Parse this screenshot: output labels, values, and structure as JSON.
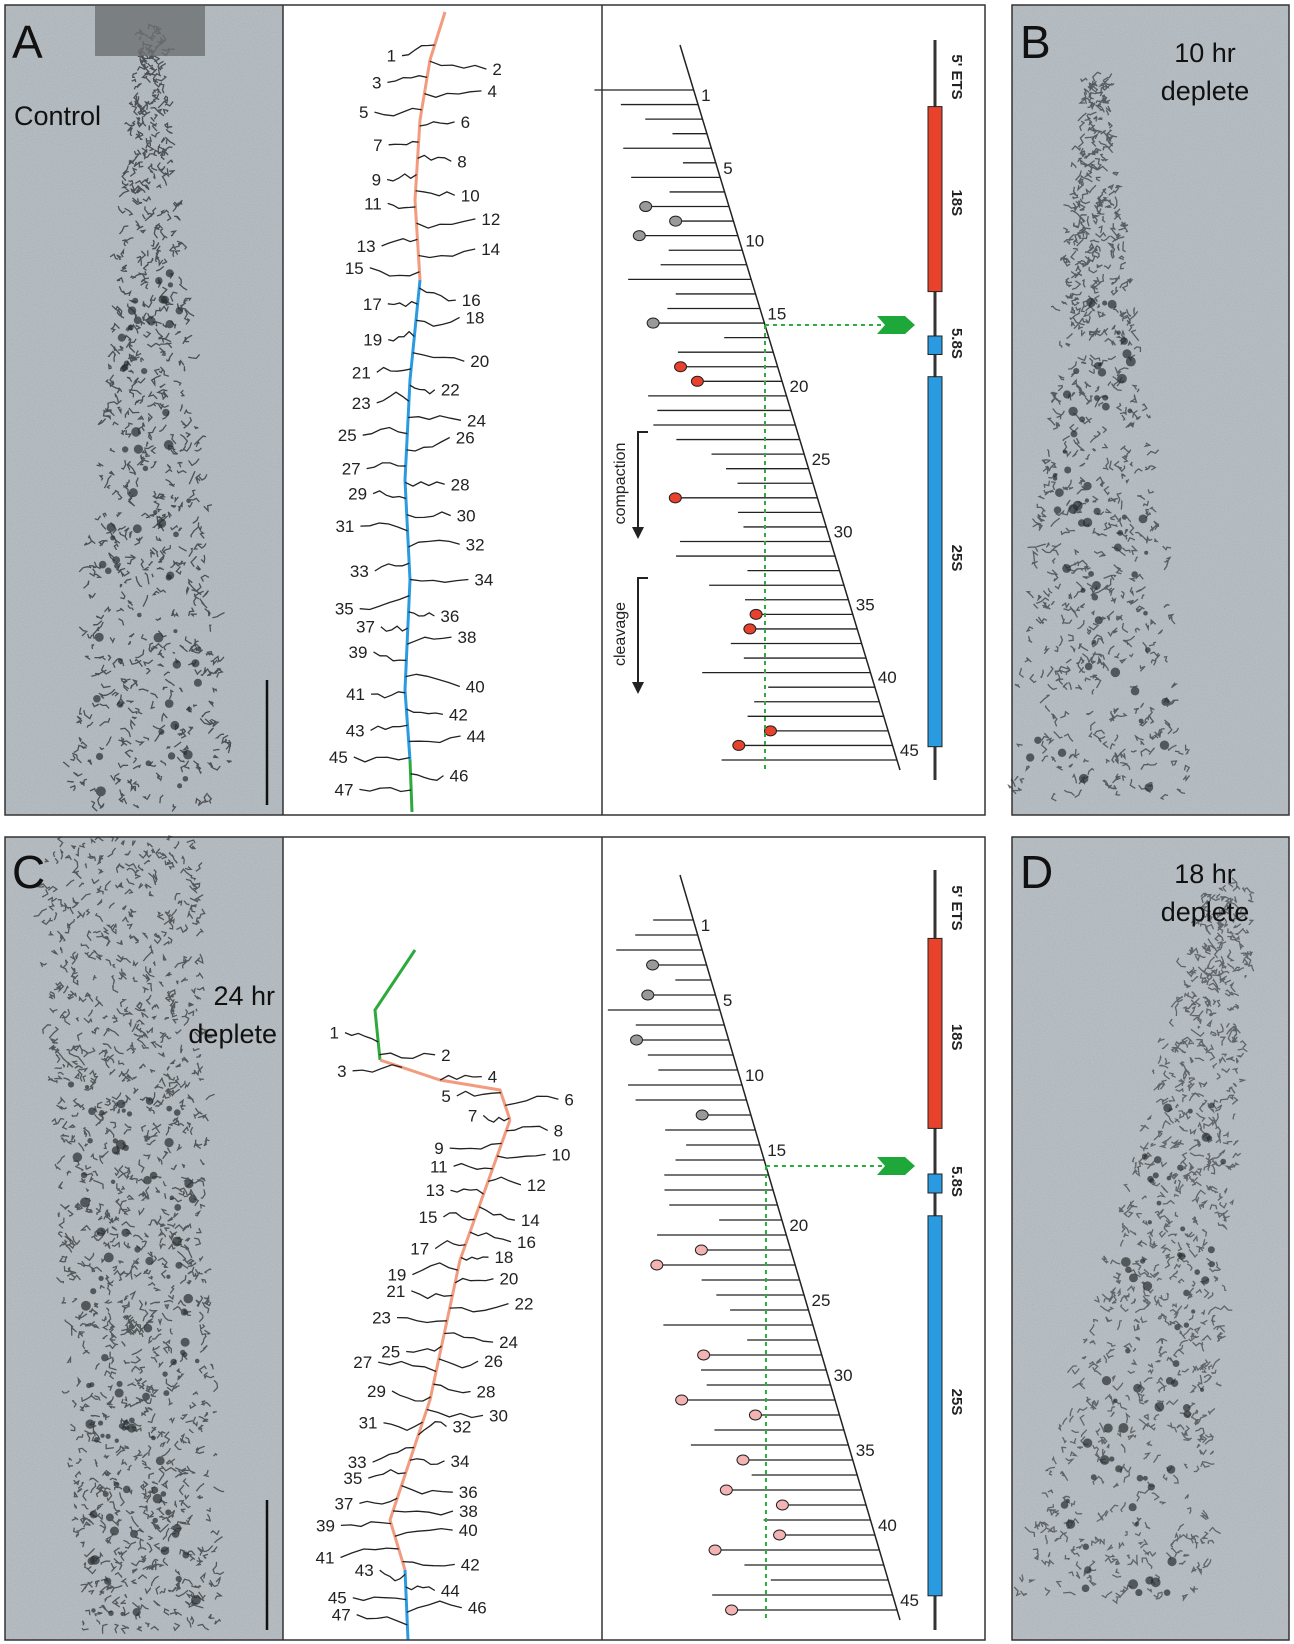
{
  "panels": [
    {
      "letter": "A",
      "label": "Control"
    },
    {
      "letter": "B",
      "label_lines": [
        "10 hr",
        "deplete"
      ]
    },
    {
      "letter": "C",
      "label_lines": [
        "24 hr",
        "deplete"
      ]
    },
    {
      "letter": "D",
      "label_lines": [
        "18 hr",
        "deplete"
      ]
    }
  ],
  "top": {
    "tracing_labels": [
      "1",
      "2",
      "3",
      "4",
      "5",
      "6",
      "7",
      "8",
      "9",
      "10",
      "11",
      "12",
      "13",
      "14",
      "15",
      "16",
      "17",
      "18",
      "19",
      "20",
      "21",
      "22",
      "23",
      "24",
      "25",
      "26",
      "27",
      "28",
      "29",
      "30",
      "31",
      "32",
      "33",
      "34",
      "35",
      "36",
      "37",
      "38",
      "39",
      "40",
      "41",
      "42",
      "43",
      "44",
      "45",
      "46",
      "47"
    ],
    "diagram_numbers": [
      "1",
      "5",
      "10",
      "15",
      "20",
      "25",
      "30",
      "35",
      "40",
      "45"
    ],
    "arrows": [
      "compaction",
      "cleavage"
    ],
    "gene": [
      "5' ETS",
      "18S",
      "5.8S",
      "25S"
    ]
  },
  "bottom": {
    "tracing_labels": [
      "1",
      "2",
      "3",
      "4",
      "5",
      "6",
      "7",
      "8",
      "9",
      "10",
      "11",
      "12",
      "13",
      "14",
      "15",
      "16",
      "17",
      "18",
      "19",
      "20",
      "21",
      "22",
      "23",
      "24",
      "25",
      "26",
      "27",
      "28",
      "29",
      "30",
      "31",
      "32",
      "33",
      "34",
      "35",
      "36",
      "37",
      "38",
      "39",
      "40",
      "41",
      "42",
      "43",
      "44",
      "45",
      "46",
      "47"
    ],
    "diagram_numbers": [
      "1",
      "5",
      "10",
      "15",
      "20",
      "25",
      "30",
      "35",
      "40",
      "45"
    ],
    "gene": [
      "5' ETS",
      "18S",
      "5.8S",
      "25S"
    ]
  }
}
